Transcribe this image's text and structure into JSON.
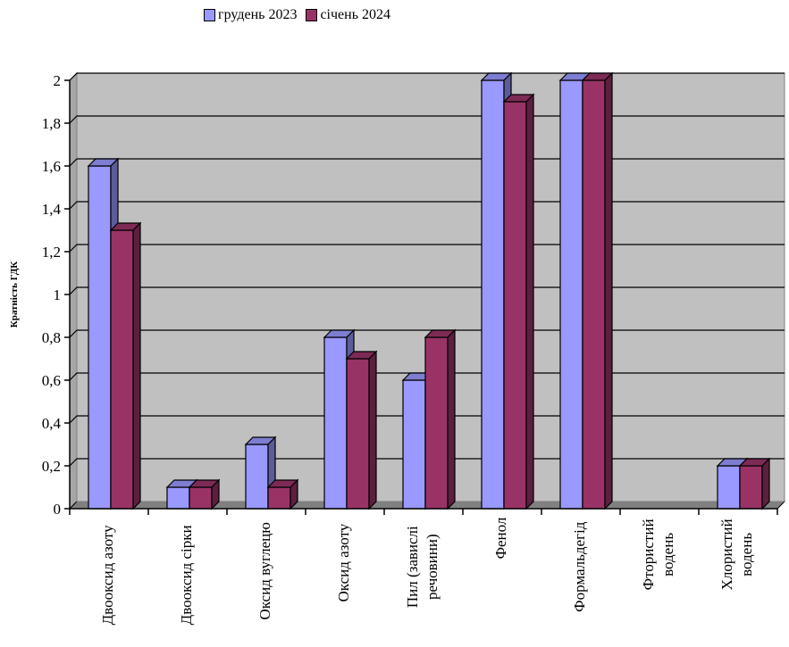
{
  "chart_data": {
    "type": "bar",
    "categories": [
      [
        "Двооксид азоту"
      ],
      [
        "Двооксид сірки"
      ],
      [
        "Оксид вуглецю"
      ],
      [
        "Оксид азоту"
      ],
      [
        "Пил (завислі",
        "речовини)"
      ],
      [
        "Фенол"
      ],
      [
        "Формальдегід"
      ],
      [
        "Фтористий",
        "водень"
      ],
      [
        "Хлористий",
        "водень"
      ]
    ],
    "series": [
      {
        "name": "грудень 2023",
        "color": "#9999ff",
        "values": [
          1.6,
          0.1,
          0.3,
          0.8,
          0.6,
          2.0,
          2.0,
          0,
          0.2
        ]
      },
      {
        "name": "січень 2024",
        "color": "#993366",
        "values": [
          1.3,
          0.1,
          0.1,
          0.7,
          0.8,
          1.9,
          2.0,
          0,
          0.2
        ]
      }
    ],
    "ylabel": "Кратність ГДК",
    "ylim": [
      0,
      2
    ],
    "yticks": [
      "0",
      "0,2",
      "0,4",
      "0,6",
      "0,8",
      "1",
      "1,2",
      "1,4",
      "1,6",
      "1,8",
      "2"
    ],
    "grid": true,
    "legend_position": "top",
    "plot_background": "#c0c0c0"
  }
}
